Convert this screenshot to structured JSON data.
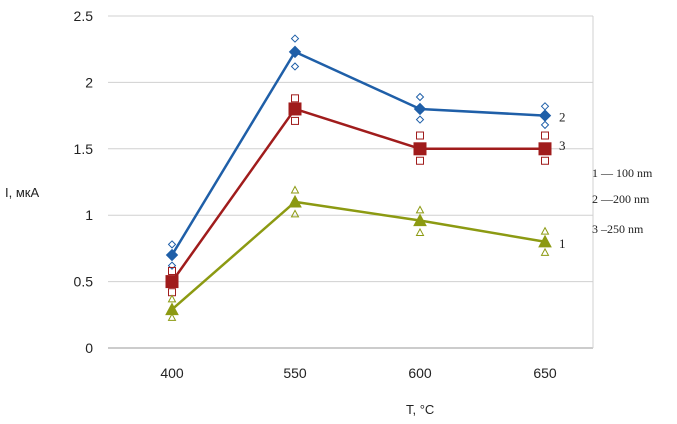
{
  "chart_data": {
    "type": "line",
    "xlabel": "T, °C",
    "ylabel": "I, мкА",
    "categories": [
      "400",
      "550",
      "600",
      "650"
    ],
    "ylim": [
      0,
      2.5
    ],
    "yticks": [
      "0",
      "0.5",
      "1",
      "1.5",
      "2",
      "2.5"
    ],
    "grid": "horizontal",
    "series": [
      {
        "name": "2",
        "color": "#1f5fa8",
        "marker": "diamond",
        "values": [
          0.7,
          2.23,
          1.8,
          1.75
        ],
        "scatter_hi": [
          0.78,
          2.33,
          1.89,
          1.82
        ],
        "scatter_lo": [
          0.62,
          2.12,
          1.72,
          1.68
        ]
      },
      {
        "name": "3",
        "color": "#a01c1c",
        "marker": "square",
        "values": [
          0.5,
          1.8,
          1.5,
          1.5
        ],
        "scatter_hi": [
          0.58,
          1.88,
          1.6,
          1.6
        ],
        "scatter_lo": [
          0.42,
          1.71,
          1.41,
          1.41
        ]
      },
      {
        "name": "1",
        "color": "#8c9a12",
        "marker": "triangle",
        "values": [
          0.29,
          1.1,
          0.96,
          0.8
        ],
        "scatter_hi": [
          0.37,
          1.19,
          1.04,
          0.88
        ],
        "scatter_lo": [
          0.23,
          1.01,
          0.87,
          0.72
        ]
      }
    ],
    "legend": {
      "placement": "right",
      "entries": [
        "1 — 100 nm",
        "2 —200 nm",
        "3 –250 nm"
      ]
    }
  }
}
